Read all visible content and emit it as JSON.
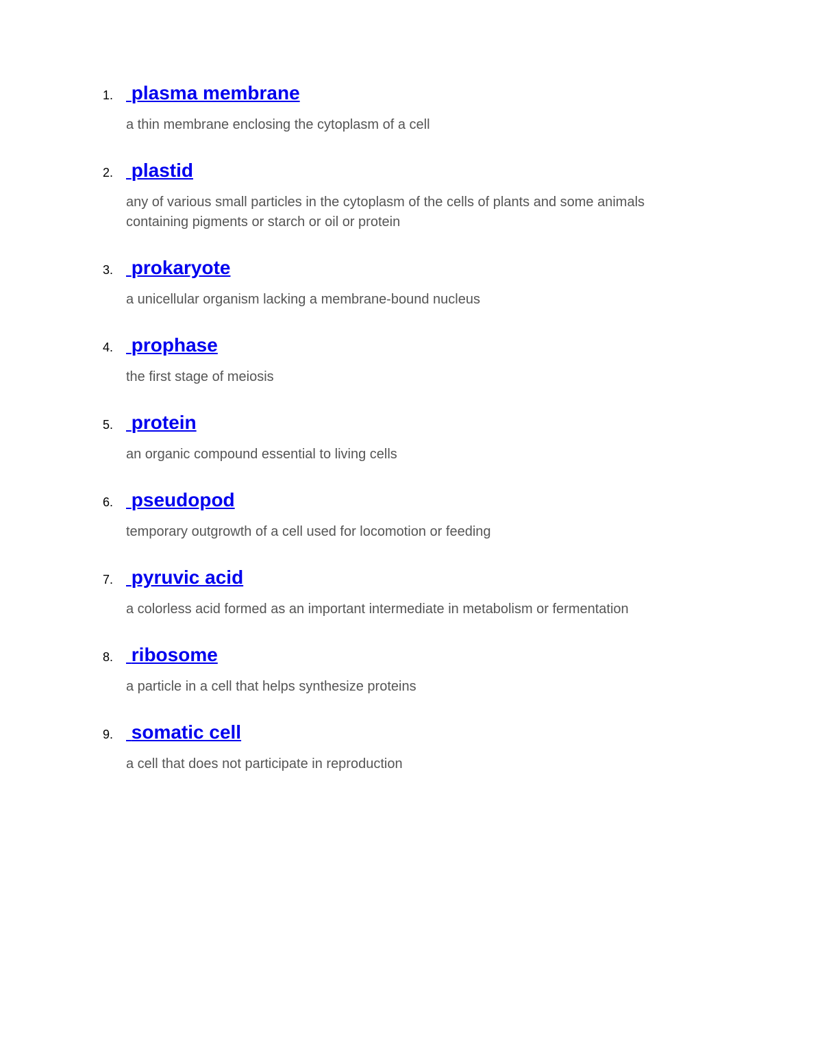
{
  "link_color": "#0000ee",
  "text_color": "#555555",
  "number_color": "#000000",
  "background_color": "#ffffff",
  "term_fontsize": 28,
  "number_fontsize": 18,
  "definition_fontsize": 20,
  "entries": [
    {
      "number": "1.",
      "term": "plasma membrane",
      "definition": "a thin membrane enclosing the cytoplasm of a cell"
    },
    {
      "number": "2.",
      "term": "plastid",
      "definition": "any of various small particles in the cytoplasm of the cells of plants and some animals containing pigments or starch or oil or protein"
    },
    {
      "number": "3.",
      "term": "prokaryote",
      "definition": "a unicellular organism lacking a membrane-bound nucleus"
    },
    {
      "number": "4.",
      "term": "prophase",
      "definition": "the first stage of meiosis"
    },
    {
      "number": "5.",
      "term": "protein",
      "definition": "an organic compound essential to living cells"
    },
    {
      "number": "6.",
      "term": "pseudopod",
      "definition": "temporary outgrowth of a cell used for locomotion or feeding"
    },
    {
      "number": "7.",
      "term": "pyruvic acid",
      "definition": "a colorless acid formed as an important intermediate in metabolism or fermentation"
    },
    {
      "number": "8.",
      "term": "ribosome",
      "definition": "a particle in a cell that helps synthesize proteins"
    },
    {
      "number": "9.",
      "term": "somatic cell",
      "definition": "a cell that does not participate in reproduction"
    }
  ]
}
